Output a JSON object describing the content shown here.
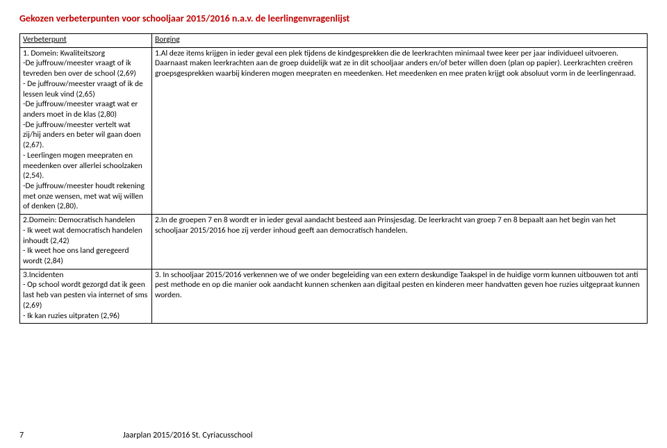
{
  "title": "Gekozen verbeterpunten voor schooljaar 2015/2016 n.a.v. de leerlingenvragenlijst",
  "headers": {
    "left": "Verbeterpunt",
    "right": "Borging"
  },
  "rows": [
    {
      "left": "1. Domein: Kwaliteitszorg\n-De juffrouw/meester vraagt of ik tevreden ben over de school (2,69)\n- De juffrouw/meester vraagt of ik de lessen leuk vind (2,65)\n-De juffrouw/meester vraagt wat er anders moet in de klas (2,80)\n-De juffrouw/meester vertelt wat zij/hij anders en beter wil gaan doen (2,67).\n- Leerlingen mogen meepraten en meedenken over allerlei schoolzaken (2,54).\n-De juffrouw/meester houdt rekening met onze wensen, met wat wij willen of denken (2,80).",
      "right": "1.Al deze items krijgen in ieder geval een plek tijdens de kindgesprekken die de leerkrachten minimaal twee keer per jaar individueel uitvoeren. Daarnaast maken leerkrachten aan de groep duidelijk wat ze in dit schooljaar anders en/of beter willen doen (plan op papier). Leerkrachten creëren groepsgesprekken waarbij kinderen mogen meepraten en meedenken. Het meedenken en mee praten krijgt ook absoluut vorm in de leerlingenraad."
    },
    {
      "left": "2.Domein: Democratisch handelen\n- Ik weet wat democratisch handelen inhoudt (2,42)\n- Ik weet hoe ons land geregeerd wordt (2,84)",
      "right": "2.In de groepen 7 en 8 wordt er in ieder geval aandacht besteed aan Prinsjesdag. De leerkracht van groep 7 en 8 bepaalt aan het begin van het schooljaar 2015/2016 hoe zij verder inhoud geeft aan democratisch handelen."
    },
    {
      "left": "3.Incidenten\n- Op school wordt gezorgd dat ik geen last heb van pesten via internet of sms (2,69)\n- Ik kan ruzies uitpraten (2,96)",
      "right": "3. In schooljaar 2015/2016 verkennen we of we onder begeleiding van een extern deskundige Taakspel in de huidige vorm kunnen uitbouwen tot anti pest methode en op die manier ook aandacht kunnen schenken aan digitaal pesten en kinderen meer handvatten geven hoe ruzies uitgepraat kunnen worden."
    }
  ],
  "footer": {
    "page": "7",
    "text": "Jaarplan 2015/2016 St. Cyriacusschool"
  }
}
